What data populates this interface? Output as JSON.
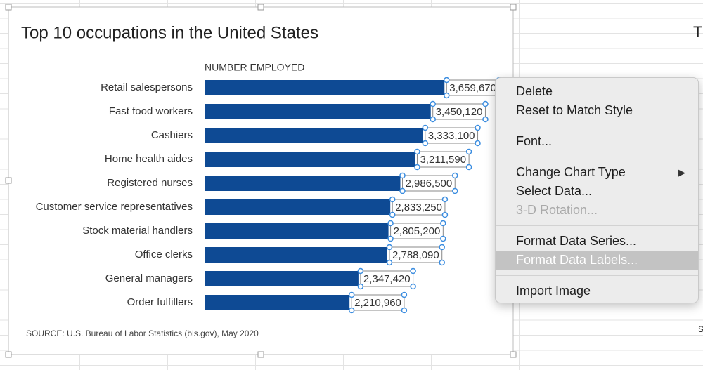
{
  "chart_data": {
    "type": "bar",
    "orientation": "horizontal",
    "title": "Top 10 occupations in the United States",
    "subtitle": "NUMBER EMPLOYED",
    "source": "SOURCE: U.S. Bureau of Labor Statistics (bls.gov), May 2020",
    "categories": [
      "Retail salespersons",
      "Fast food workers",
      "Cashiers",
      "Home health aides",
      "Registered nurses",
      "Customer service representatives",
      "Stock material handlers",
      "Office clerks",
      "General managers",
      "Order fulfillers"
    ],
    "values": [
      3659670,
      3450120,
      3333100,
      3211590,
      2986500,
      2833250,
      2805200,
      2788090,
      2347420,
      2210960
    ],
    "value_labels": [
      "3,659,670",
      "3,450,120",
      "3,333,100",
      "3,211,590",
      "2,986,500",
      "2,833,250",
      "2,805,200",
      "2,788,090",
      "2,347,420",
      "2,210,960"
    ],
    "color": "#0e4a94",
    "xlim": [
      0,
      4000000
    ]
  },
  "context_menu": {
    "groups": [
      [
        {
          "label": "Delete"
        },
        {
          "label": "Reset to Match Style"
        }
      ],
      [
        {
          "label": "Font..."
        }
      ],
      [
        {
          "label": "Change Chart Type",
          "submenu": true
        },
        {
          "label": "Select Data..."
        },
        {
          "label": "3-D Rotation...",
          "disabled": true
        }
      ],
      [
        {
          "label": "Format Data Series..."
        },
        {
          "label": "Format Data Labels...",
          "highlighted": true
        }
      ],
      [
        {
          "label": "Import Image"
        }
      ]
    ]
  },
  "sheet_fragments": [
    "T",
    "S"
  ]
}
